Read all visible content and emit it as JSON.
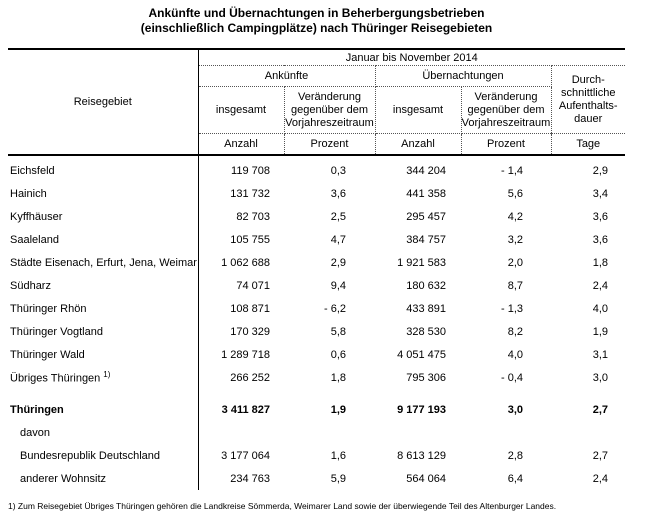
{
  "title": {
    "line1": "Ankünfte und Übernachtungen in Beherbergungsbetrieben",
    "line2": "(einschließlich Campingplätze) nach Thüringer Reisegebieten"
  },
  "table": {
    "header": {
      "region_label": "Reisegebiet",
      "period": "Januar bis November 2014",
      "group_arrivals": "Ankünfte",
      "group_overnights": "Übernachtungen",
      "col_total": "insgesamt",
      "col_change_l1": "Veränderung",
      "col_change_l2": "gegenüber dem",
      "col_change_l3": "Vorjahreszeitraum",
      "avg_stay_l1": "Durch-",
      "avg_stay_l2": "schnittliche",
      "avg_stay_l3": "Aufenthalts-",
      "avg_stay_l4": "dauer",
      "unit_count": "Anzahl",
      "unit_percent": "Prozent",
      "unit_days": "Tage"
    },
    "rows": [
      {
        "region": "Eichsfeld",
        "values": [
          "119 708",
          "0,3",
          "344 204",
          "- 1,4",
          "2,9"
        ]
      },
      {
        "region": "Hainich",
        "values": [
          "131 732",
          "3,6",
          "441 358",
          "5,6",
          "3,4"
        ]
      },
      {
        "region": "Kyffhäuser",
        "values": [
          "82 703",
          "2,5",
          "295 457",
          "4,2",
          "3,6"
        ]
      },
      {
        "region": "Saaleland",
        "values": [
          "105 755",
          "4,7",
          "384 757",
          "3,2",
          "3,6"
        ]
      },
      {
        "region": "Städte Eisenach, Erfurt, Jena, Weimar",
        "values": [
          "1 062 688",
          "2,9",
          "1 921 583",
          "2,0",
          "1,8"
        ]
      },
      {
        "region": "Südharz",
        "values": [
          "74 071",
          "9,4",
          "180 632",
          "8,7",
          "2,4"
        ]
      },
      {
        "region": "Thüringer Rhön",
        "values": [
          "108 871",
          "- 6,2",
          "433 891",
          "- 1,3",
          "4,0"
        ]
      },
      {
        "region": "Thüringer Vogtland",
        "values": [
          "170 329",
          "5,8",
          "328 530",
          "8,2",
          "1,9"
        ]
      },
      {
        "region": "Thüringer Wald",
        "values": [
          "1 289 718",
          "0,6",
          "4 051 475",
          "4,0",
          "3,1"
        ]
      },
      {
        "region": "Übriges Thüringen",
        "sup": "1)",
        "values": [
          "266 252",
          "1,8",
          "795 306",
          "- 0,4",
          "3,0"
        ]
      },
      {
        "region": "Thüringen",
        "bold": true,
        "values": [
          "3 411 827",
          "1,9",
          "9 177 193",
          "3,0",
          "2,7"
        ]
      },
      {
        "region": "davon",
        "indent": true,
        "values": [
          "",
          "",
          "",
          "",
          ""
        ]
      },
      {
        "region": "Bundesrepublik Deutschland",
        "indent": true,
        "values": [
          "3 177 064",
          "1,6",
          "8 613 129",
          "2,8",
          "2,7"
        ]
      },
      {
        "region": "anderer Wohnsitz",
        "indent": true,
        "values": [
          "234 763",
          "5,9",
          "564 064",
          "6,4",
          "2,4"
        ]
      }
    ]
  },
  "footnote": "1) Zum Reisegebiet Übriges Thüringen gehören die Landkreise Sömmerda, Weimarer Land sowie der überwiegende Teil des Altenburger Landes."
}
